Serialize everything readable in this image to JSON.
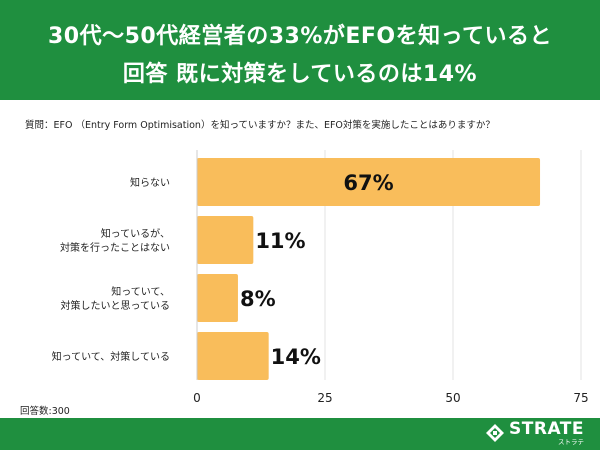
{
  "header": {
    "line1": "30代～50代経営者の33%がEFOを知っていると",
    "line2": "回答 既に対策をしているのは14%"
  },
  "question": "質問：EFO （Entry Form Optimisation）を知っていますか？また、EFO対策を実施したことはありますか？",
  "footnote": "回答数:300",
  "logo": {
    "name": "STRATE",
    "kana": "ストラテ"
  },
  "colors": {
    "header": "#1f8f3f",
    "bar": "#f9bd5b",
    "text": "#222222"
  },
  "chart_data": {
    "type": "bar",
    "orientation": "horizontal",
    "categories": [
      [
        "知らない"
      ],
      [
        "知っているが、",
        "対策を行ったことはない"
      ],
      [
        "知っていて、",
        "対策したいと思っている"
      ],
      [
        "知っていて、対策している"
      ]
    ],
    "values": [
      67,
      11,
      8,
      14
    ],
    "value_labels": [
      "67%",
      "11%",
      "8%",
      "14%"
    ],
    "xlim": [
      0,
      75
    ],
    "xticks": [
      "0",
      "25",
      "50",
      "75"
    ]
  }
}
